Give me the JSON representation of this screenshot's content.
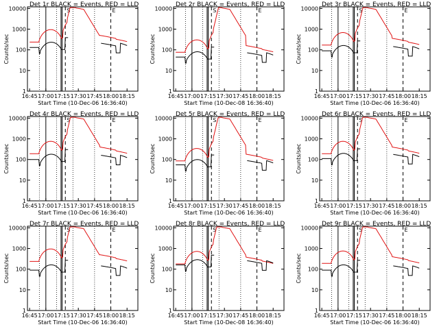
{
  "colors": {
    "events": "#000000",
    "lld": "#e01010",
    "axes": "#000000",
    "background": "#ffffff"
  },
  "common": {
    "ylabel": "Counts/sec",
    "xlabel": "Start Time (10-Dec-06 16:36:40)",
    "xlabel_variant": "Start Time (10-Dec-08 16:36:40)",
    "xticks": [
      "16:45",
      "17:00",
      "17:15",
      "17:30",
      "17:45",
      "18:00",
      "18:15"
    ],
    "yticks": [
      "1",
      "10",
      "100",
      "1000",
      "10000"
    ],
    "xlim_minutes": [
      -2,
      100
    ],
    "ylim_log": [
      1,
      12000
    ],
    "saa_markers": [
      "S",
      "E"
    ]
  },
  "chart_data": [
    {
      "type": "line",
      "title": "Det 1r BLACK = Events, RED = LLD",
      "xlabel": "Start Time (10-Dec-06 16:36:40)",
      "ylabel": "Counts/sec",
      "series": [
        {
          "name": "BLACK = Events",
          "base": 130
        },
        {
          "name": "RED = LLD",
          "base": 250
        }
      ]
    },
    {
      "type": "line",
      "title": "Det 2r BLACK = Events, RED = LLD",
      "xlabel": "Start Time (10-Dec-08 16:36:40)",
      "ylabel": "Counts/sec",
      "series": [
        {
          "name": "BLACK = Events",
          "base": 45
        },
        {
          "name": "RED = LLD",
          "base": 80
        }
      ]
    },
    {
      "type": "line",
      "title": "Det 3r BLACK = Events, RED = LLD",
      "xlabel": "Start Time (10-Dec-06 16:36:40)",
      "ylabel": "Counts/sec",
      "series": [
        {
          "name": "BLACK = Events",
          "base": 90
        },
        {
          "name": "RED = LLD",
          "base": 180
        }
      ]
    },
    {
      "type": "line",
      "title": "Det 4r BLACK = Events, RED = LLD",
      "xlabel": "Start Time (10-Dec-06 16:36:40)",
      "ylabel": "Counts/sec",
      "series": [
        {
          "name": "BLACK = Events",
          "base": 100
        },
        {
          "name": "RED = LLD",
          "base": 200
        }
      ]
    },
    {
      "type": "line",
      "title": "Det 5r BLACK = Events, RED = LLD",
      "xlabel": "Start Time (10-Dec-06 16:36:40)",
      "ylabel": "Counts/sec",
      "series": [
        {
          "name": "BLACK = Events",
          "base": 55
        },
        {
          "name": "RED = LLD",
          "base": 90
        }
      ]
    },
    {
      "type": "line",
      "title": "Det 6r BLACK = Events, RED = LLD",
      "xlabel": "Start Time (10-Dec-06 16:36:40)",
      "ylabel": "Counts/sec",
      "series": [
        {
          "name": "BLACK = Events",
          "base": 110
        },
        {
          "name": "RED = LLD",
          "base": 200
        }
      ]
    },
    {
      "type": "line",
      "title": "Det 7r BLACK = Events, RED = LLD",
      "xlabel": "Start Time (10-Dec-06 16:36:40)",
      "ylabel": "Counts/sec",
      "series": [
        {
          "name": "BLACK = Events",
          "base": 90
        },
        {
          "name": "RED = LLD",
          "base": 250
        }
      ]
    },
    {
      "type": "line",
      "title": "Det 8r BLACK = Events, RED = LLD",
      "xlabel": "Start Time (10-Dec-08 16:36:40)",
      "ylabel": "Counts/sec",
      "series": [
        {
          "name": "BLACK = Events",
          "base": 160
        },
        {
          "name": "RED = LLD",
          "base": 190
        }
      ]
    },
    {
      "type": "line",
      "title": "Det 9r BLACK = Events, RED = LLD",
      "xlabel": "Start Time (10-Dec-06 16:36:40)",
      "ylabel": "Counts/sec",
      "series": [
        {
          "name": "BLACK = Events",
          "base": 90
        },
        {
          "name": "RED = LLD",
          "base": 200
        }
      ]
    }
  ]
}
